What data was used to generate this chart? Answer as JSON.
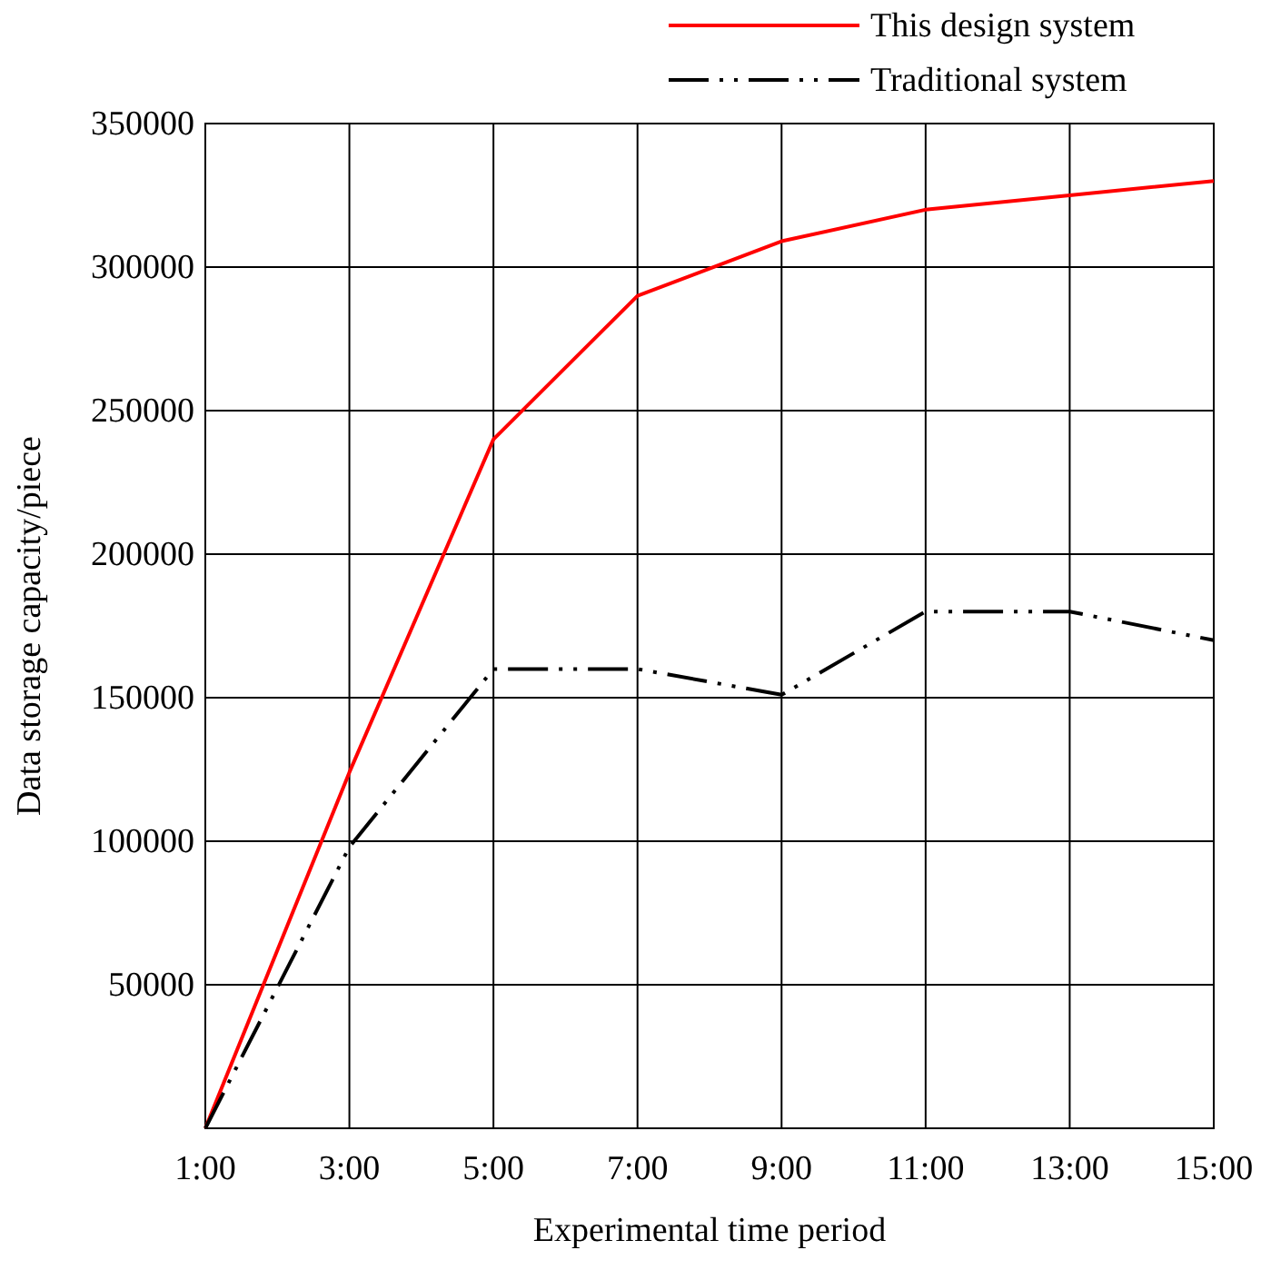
{
  "chart_data": {
    "type": "line",
    "xlabel": "Experimental time period",
    "ylabel": "Data storage capacity/piece",
    "x": [
      1,
      3,
      5,
      7,
      9,
      11,
      13,
      15
    ],
    "series": [
      {
        "name": "This design system",
        "color": "#ff0000",
        "line_style": "solid",
        "values": [
          0,
          124000,
          240000,
          290000,
          309000,
          320000,
          325000,
          330000
        ]
      },
      {
        "name": "Traditional system",
        "color": "#000000",
        "line_style": "dashed",
        "values": [
          0,
          98000,
          160000,
          160000,
          151000,
          180000,
          180000,
          170000
        ]
      }
    ],
    "xlim": [
      1,
      15
    ],
    "xticks": [
      {
        "value": 1,
        "label": "1:00"
      },
      {
        "value": 3,
        "label": "3:00"
      },
      {
        "value": 5,
        "label": "5:00"
      },
      {
        "value": 7,
        "label": "7:00"
      },
      {
        "value": 9,
        "label": "9:00"
      },
      {
        "value": 11,
        "label": "11:00"
      },
      {
        "value": 13,
        "label": "13:00"
      },
      {
        "value": 15,
        "label": "15:00"
      }
    ],
    "ylim": [
      0,
      350000
    ],
    "yticks": [
      50000,
      100000,
      150000,
      200000,
      250000,
      300000,
      350000
    ],
    "grid": true,
    "legend": "top right",
    "marker": "none"
  }
}
